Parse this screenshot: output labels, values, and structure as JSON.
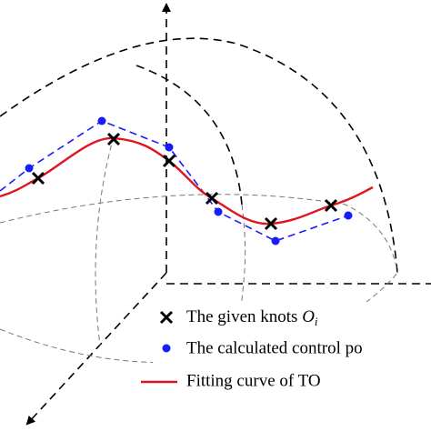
{
  "legend": {
    "knots": {
      "label": "The given knots",
      "symbol": "O",
      "subscript": "i"
    },
    "control_points": {
      "label": "The calculated control po"
    },
    "curve": {
      "label": "Fitting curve of TO"
    }
  }
}
